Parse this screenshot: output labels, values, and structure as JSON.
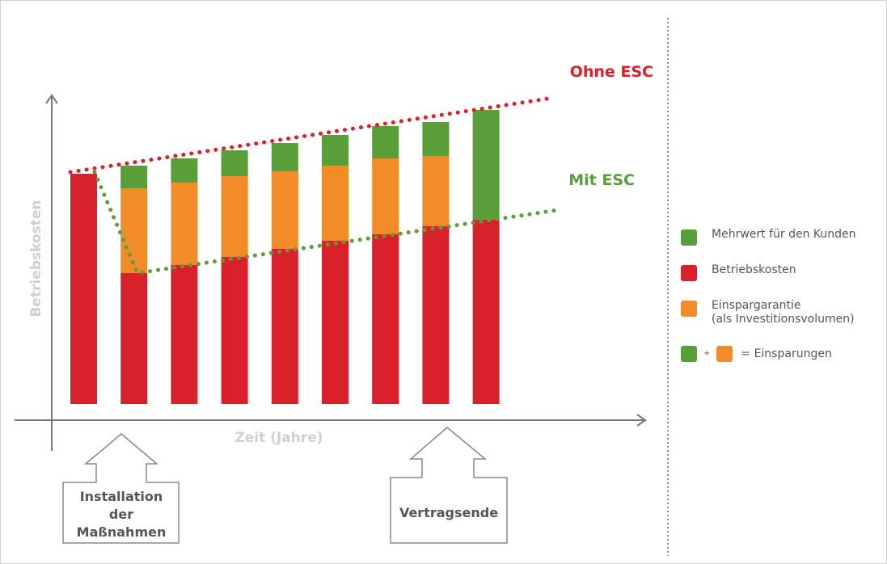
{
  "chart_data": {
    "type": "bar",
    "stacked": true,
    "categories": [
      "",
      "",
      "",
      "",
      "",
      "",
      "",
      "",
      ""
    ],
    "series": [
      {
        "name": "Betriebskosten",
        "color": "#d9212c",
        "values": [
          285,
          162,
          172,
          182,
          192,
          202,
          210,
          220,
          228
        ]
      },
      {
        "name": "Einspargarantie (als Investitionsvolumen)",
        "color": "#f28c28",
        "values": [
          0,
          105,
          102,
          100,
          96,
          93,
          94,
          87,
          0
        ]
      },
      {
        "name": "Mehrwert für den Kunden",
        "color": "#5a9e3a",
        "values": [
          0,
          28,
          30,
          32,
          35,
          38,
          40,
          42,
          136
        ]
      }
    ],
    "xlabel": "Zeit (Jahre)",
    "ylabel": "Betriebskosten",
    "ylim": [
      0,
      380
    ],
    "lines": [
      {
        "label": "Ohne ESC",
        "color": "#d9212c",
        "style": "dotted",
        "values": [
          287,
          379
        ]
      },
      {
        "label": "Mit ESC",
        "color": "#5a9e3a",
        "style": "dotted",
        "points": [
          [
            0,
            287
          ],
          [
            0.85,
            162
          ],
          [
            9.2,
            240
          ]
        ]
      }
    ],
    "annotations": [
      {
        "text": "Installation\nder\nMaßnahmen",
        "at_category": 1
      },
      {
        "text": "Vertragsende",
        "at_category": 7
      }
    ]
  },
  "legend": {
    "items": [
      {
        "label": "Mehrwert für den Kunden",
        "color": "#5a9e3a"
      },
      {
        "label": "Betriebskosten",
        "color": "#d9212c"
      },
      {
        "label": "Einspargarantie\n(als Investitionsvolumen)",
        "color": "#f28c28"
      }
    ],
    "sum_row": {
      "plus": "+",
      "equals_label": "= Einsparungen",
      "color_a": "#5a9e3a",
      "color_b": "#f28c28"
    }
  }
}
